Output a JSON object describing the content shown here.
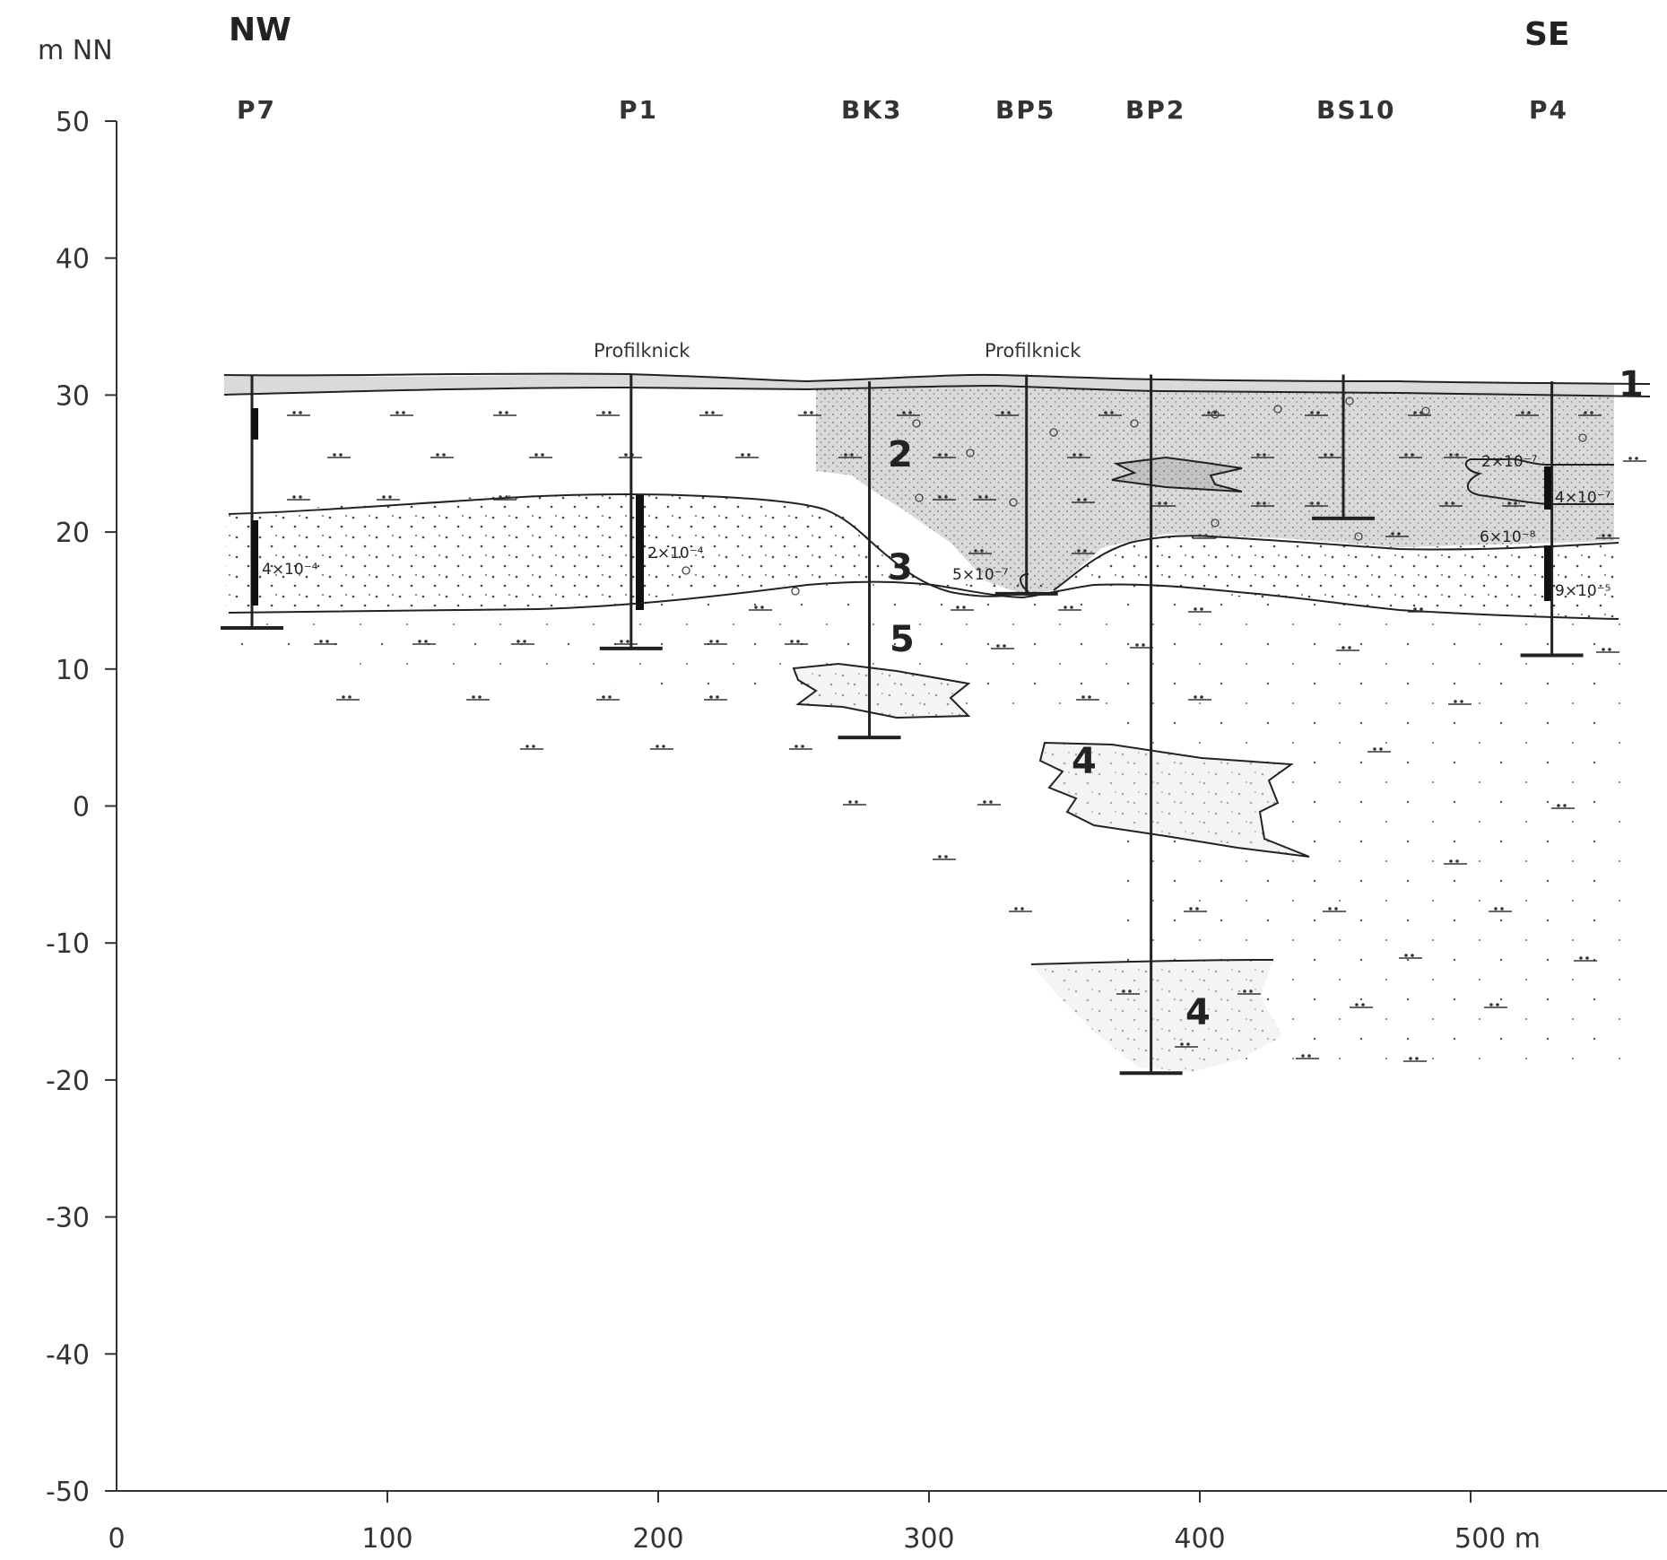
{
  "axes": {
    "y_unit": "m NN",
    "y_ticks": [
      "50",
      "40",
      "30",
      "20",
      "10",
      "0",
      "-10",
      "-20",
      "-30",
      "-40",
      "-50"
    ],
    "x_ticks": [
      "0",
      "100",
      "200",
      "300",
      "400",
      "500 m"
    ]
  },
  "directions": {
    "left": "NW",
    "right": "SE"
  },
  "wells": [
    {
      "id": "P7",
      "label": "P7",
      "x_m": 50,
      "top": 31.5,
      "bottom": 13
    },
    {
      "id": "P1",
      "label": "P1",
      "x_m": 190,
      "top": 31.5,
      "bottom": 11.5
    },
    {
      "id": "BK3",
      "label": "BK3",
      "x_m": 278,
      "top": 31,
      "bottom": 5
    },
    {
      "id": "BP5",
      "label": "BP5",
      "x_m": 336,
      "top": 31.5,
      "bottom": 15.5
    },
    {
      "id": "BP2",
      "label": "BP2",
      "x_m": 382,
      "top": 31.5,
      "bottom": -19.5
    },
    {
      "id": "BS10",
      "label": "BS10",
      "x_m": 453,
      "top": 31.5,
      "bottom": 21
    },
    {
      "id": "P4",
      "label": "P4",
      "x_m": 530,
      "top": 31,
      "bottom": 11
    }
  ],
  "annotations": {
    "profilknick_1": "Profilknick",
    "profilknick_2": "Profilknick"
  },
  "permeability": {
    "p7": "4×10⁻⁴",
    "p1": "2×10⁻⁴",
    "bp5": "5×10⁻⁷",
    "p4_a": "2×10⁻⁷",
    "p4_b": "4×10⁻⁷",
    "p4_c": "6×10⁻⁸",
    "p4_d": "9×10⁻⁵"
  },
  "layers": {
    "l1": "1",
    "l2": "2",
    "l3": "3",
    "l4a": "4",
    "l4b": "4",
    "l5": "5"
  },
  "colors": {
    "line": "#222222",
    "stipple_dense": "#bdbdbd",
    "stipple_light": "#e3e3e3"
  }
}
